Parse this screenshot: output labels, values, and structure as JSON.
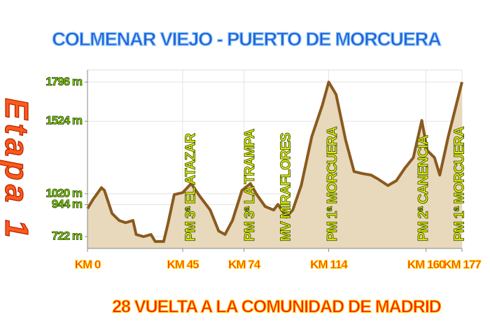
{
  "chart_data": {
    "type": "area",
    "title": "COLMENAR VIEJO - PUERTO DE MORCUERA",
    "caption": "28 VUELTA A LA COMUNIDAD DE MADRID",
    "stage_label": "Etapa 1",
    "x": [
      0,
      2.6,
      6.6,
      8,
      11.6,
      15,
      18,
      21.5,
      23,
      26.5,
      30,
      32,
      36,
      38,
      41,
      45,
      49,
      53,
      58,
      62,
      65,
      68.5,
      73,
      77,
      80,
      84,
      88,
      90,
      94,
      97,
      101,
      106,
      111,
      114,
      117.5,
      122,
      126,
      130,
      134,
      137,
      142,
      146,
      150,
      154,
      158,
      160.6,
      164,
      166.5,
      170.5,
      177
    ],
    "values": [
      917,
      980,
      1062,
      1043,
      883,
      834,
      819,
      834,
      737,
      722,
      737,
      688,
      688,
      810,
      1014,
      1028,
      1091,
      1004,
      907,
      761,
      737,
      834,
      1043,
      1091,
      1014,
      931,
      907,
      946,
      858,
      907,
      1077,
      1417,
      1636,
      1796,
      1709,
      1393,
      1174,
      1160,
      1150,
      1125,
      1077,
      1111,
      1198,
      1271,
      1529,
      1320,
      1271,
      1150,
      1417,
      1796
    ],
    "color": "#8a5a1e",
    "fill": "#e8d8bc",
    "xlim": [
      0,
      177
    ],
    "xticks": [
      {
        "value": 0,
        "label": "KM 0"
      },
      {
        "value": 45,
        "label": "KM 45"
      },
      {
        "value": 74,
        "label": "KM 74"
      },
      {
        "value": 114,
        "label": "KM 114"
      },
      {
        "value": 160,
        "label": "KM 160"
      },
      {
        "value": 177,
        "label": "KM 177"
      }
    ],
    "ylim": [
      640,
      1880
    ],
    "yticks": [
      {
        "value": 722,
        "label": "722 m"
      },
      {
        "value": 944,
        "label": "944 m"
      },
      {
        "value": 1020,
        "label": "1020 m"
      },
      {
        "value": 1524,
        "label": "1524 m"
      },
      {
        "value": 1796,
        "label": "1796 m"
      }
    ],
    "grid": true,
    "annotations": [
      {
        "text": "PM 3ª EL ATAZAR",
        "x": 49
      },
      {
        "text": "PM 3ª LA TRAMPA",
        "x": 77
      },
      {
        "text": "MV MIRAFLORES",
        "x": 94
      },
      {
        "text": "PM 1ª MORCUERA",
        "x": 116
      },
      {
        "text": "PM 2ª CANENCIA",
        "x": 159
      },
      {
        "text": "PM 1ª MORCUERA",
        "x": 176
      }
    ]
  }
}
